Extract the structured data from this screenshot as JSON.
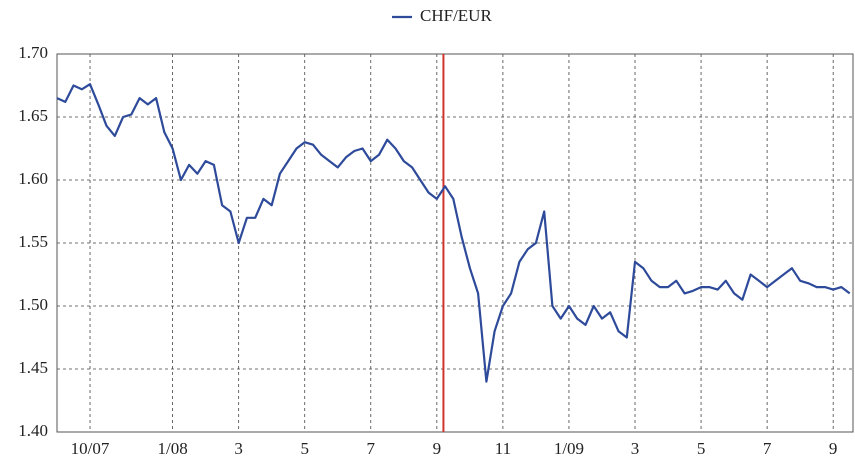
{
  "chart_data": {
    "type": "line",
    "series": [
      {
        "name": "CHF/EUR",
        "color": "#2e4a9a",
        "values": [
          1.665,
          1.662,
          1.675,
          1.672,
          1.676,
          1.66,
          1.643,
          1.635,
          1.65,
          1.652,
          1.665,
          1.66,
          1.665,
          1.638,
          1.625,
          1.6,
          1.612,
          1.605,
          1.615,
          1.612,
          1.58,
          1.575,
          1.55,
          1.57,
          1.57,
          1.585,
          1.58,
          1.605,
          1.615,
          1.625,
          1.63,
          1.628,
          1.62,
          1.615,
          1.61,
          1.618,
          1.623,
          1.625,
          1.615,
          1.62,
          1.632,
          1.625,
          1.615,
          1.61,
          1.6,
          1.59,
          1.585,
          1.595,
          1.585,
          1.555,
          1.53,
          1.51,
          1.44,
          1.48,
          1.5,
          1.51,
          1.535,
          1.545,
          1.55,
          1.575,
          1.5,
          1.49,
          1.5,
          1.49,
          1.485,
          1.5,
          1.49,
          1.495,
          1.48,
          1.475,
          1.535,
          1.53,
          1.52,
          1.515,
          1.515,
          1.52,
          1.51,
          1.512,
          1.515,
          1.515,
          1.513,
          1.52,
          1.51,
          1.505,
          1.525,
          1.52,
          1.515,
          1.52,
          1.525,
          1.53,
          1.52,
          1.518,
          1.515,
          1.515,
          1.513,
          1.515,
          1.51
        ]
      }
    ],
    "x": [
      0,
      0.25,
      0.5,
      0.75,
      1,
      1.25,
      1.5,
      1.75,
      2,
      2.25,
      2.5,
      2.75,
      3,
      3.25,
      3.5,
      3.75,
      4,
      4.25,
      4.5,
      4.75,
      5,
      5.25,
      5.5,
      5.75,
      6,
      6.25,
      6.5,
      6.75,
      7,
      7.25,
      7.5,
      7.75,
      8,
      8.25,
      8.5,
      8.75,
      9,
      9.25,
      9.5,
      9.75,
      10,
      10.25,
      10.5,
      10.75,
      11,
      11.25,
      11.5,
      11.75,
      12,
      12.25,
      12.5,
      12.75,
      13,
      13.25,
      13.5,
      13.75,
      14,
      14.25,
      14.5,
      14.75,
      15,
      15.25,
      15.5,
      15.75,
      16,
      16.25,
      16.5,
      16.75,
      17,
      17.25,
      17.5,
      17.75,
      18,
      18.25,
      18.5,
      18.75,
      19,
      19.25,
      19.5,
      19.75,
      20,
      20.25,
      20.5,
      20.75,
      21,
      21.25,
      21.5,
      21.75,
      22,
      22.25,
      22.5,
      22.75,
      23,
      23.25,
      23.5,
      23.75,
      24
    ],
    "xlim": [
      0,
      24.1
    ],
    "xticks": [
      {
        "value": 1,
        "label": "10/07"
      },
      {
        "value": 3.5,
        "label": "1/08"
      },
      {
        "value": 5.5,
        "label": "3"
      },
      {
        "value": 7.5,
        "label": "5"
      },
      {
        "value": 9.5,
        "label": "7"
      },
      {
        "value": 11.5,
        "label": "9"
      },
      {
        "value": 13.5,
        "label": "11"
      },
      {
        "value": 15.5,
        "label": "1/09"
      },
      {
        "value": 17.5,
        "label": "3"
      },
      {
        "value": 19.5,
        "label": "5"
      },
      {
        "value": 21.5,
        "label": "7"
      },
      {
        "value": 23.5,
        "label": "9"
      }
    ],
    "ylim": [
      1.4,
      1.7
    ],
    "yticks": [
      {
        "value": 1.4,
        "label": "1.40"
      },
      {
        "value": 1.45,
        "label": "1.45"
      },
      {
        "value": 1.5,
        "label": "1.50"
      },
      {
        "value": 1.55,
        "label": "1.55"
      },
      {
        "value": 1.6,
        "label": "1.60"
      },
      {
        "value": 1.65,
        "label": "1.65"
      },
      {
        "value": 1.7,
        "label": "1.70"
      }
    ],
    "grid": true,
    "marker_x": 11.7,
    "marker_color": "#d0342c",
    "legend": "top"
  }
}
